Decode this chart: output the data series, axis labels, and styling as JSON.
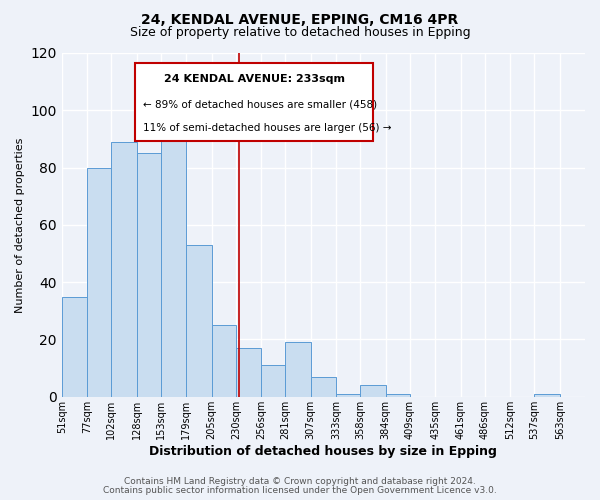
{
  "title1": "24, KENDAL AVENUE, EPPING, CM16 4PR",
  "title2": "Size of property relative to detached houses in Epping",
  "xlabel": "Distribution of detached houses by size in Epping",
  "ylabel": "Number of detached properties",
  "bar_left_edges": [
    51,
    77,
    102,
    128,
    153,
    179,
    205,
    230,
    256,
    281,
    307,
    333,
    358,
    384,
    409,
    435,
    461,
    486,
    512,
    537
  ],
  "bar_widths": [
    26,
    25,
    26,
    25,
    26,
    26,
    25,
    26,
    25,
    26,
    26,
    25,
    26,
    25,
    26,
    26,
    25,
    26,
    25,
    26
  ],
  "bar_heights": [
    35,
    80,
    89,
    85,
    91,
    53,
    25,
    17,
    11,
    19,
    7,
    1,
    4,
    1,
    0,
    0,
    0,
    0,
    0,
    1
  ],
  "bar_color": "#c9ddf0",
  "bar_edge_color": "#5b9bd5",
  "tick_labels": [
    "51sqm",
    "77sqm",
    "102sqm",
    "128sqm",
    "153sqm",
    "179sqm",
    "205sqm",
    "230sqm",
    "256sqm",
    "281sqm",
    "307sqm",
    "333sqm",
    "358sqm",
    "384sqm",
    "409sqm",
    "435sqm",
    "461sqm",
    "486sqm",
    "512sqm",
    "537sqm",
    "563sqm"
  ],
  "tick_positions": [
    51,
    77,
    102,
    128,
    153,
    179,
    205,
    230,
    256,
    281,
    307,
    333,
    358,
    384,
    409,
    435,
    461,
    486,
    512,
    537,
    563
  ],
  "vline_x": 233,
  "vline_color": "#c00000",
  "ylim": [
    0,
    120
  ],
  "yticks": [
    0,
    20,
    40,
    60,
    80,
    100,
    120
  ],
  "box_text_line1": "24 KENDAL AVENUE: 233sqm",
  "box_text_line2": "← 89% of detached houses are smaller (458)",
  "box_text_line3": "11% of semi-detached houses are larger (56) →",
  "footnote1": "Contains HM Land Registry data © Crown copyright and database right 2024.",
  "footnote2": "Contains public sector information licensed under the Open Government Licence v3.0.",
  "bg_color": "#eef2f9",
  "grid_color": "#ffffff",
  "title1_fontsize": 10,
  "title2_fontsize": 9,
  "xlabel_fontsize": 9,
  "ylabel_fontsize": 8,
  "tick_fontsize": 7,
  "footnote_fontsize": 6.5,
  "xlim_left": 51,
  "xlim_right": 589
}
